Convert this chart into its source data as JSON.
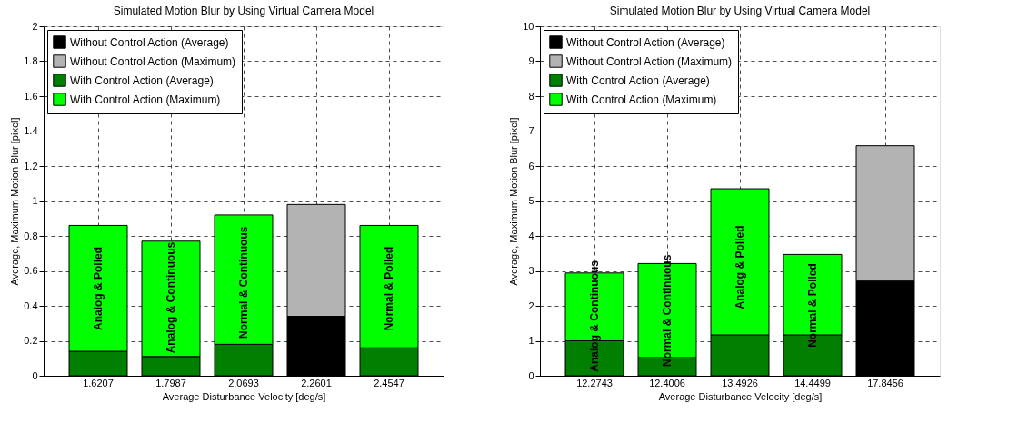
{
  "chart_data": [
    {
      "type": "bar",
      "title": "Simulated Motion Blur by Using Virtual Camera Model",
      "xlabel": "Average Disturbance Velocity [deg/s]",
      "ylabel": "Average, Maximum Motion Blur [pixel]",
      "categories": [
        "1.6207",
        "1.7987",
        "2.0693",
        "2.2601",
        "2.4547"
      ],
      "stacked": true,
      "series": [
        {
          "name": "Without Control Action (Average)",
          "color": "#000000",
          "values": [
            null,
            null,
            null,
            0.34,
            null
          ]
        },
        {
          "name": "Without Control Action (Maximum)",
          "color": "#b3b3b3",
          "values": [
            null,
            null,
            null,
            0.64,
            null
          ]
        },
        {
          "name": "With Control Action (Average)",
          "color": "#007f00",
          "values": [
            0.14,
            0.11,
            0.18,
            null,
            0.16
          ]
        },
        {
          "name": "With Control Action (Maximum)",
          "color": "#00ff00",
          "values": [
            0.72,
            0.66,
            0.74,
            null,
            0.7
          ]
        }
      ],
      "ylim": [
        0,
        2
      ],
      "yticks": [
        0,
        0.2,
        0.4,
        0.6,
        0.8,
        1,
        1.2,
        1.4,
        1.6,
        1.8,
        2
      ],
      "grid": true,
      "legend": "top left",
      "annotations": [
        "Analog & Polled",
        "Analog & Continuous",
        "Normal & Continuous",
        "Normal & Polled"
      ]
    },
    {
      "type": "bar",
      "title": "Simulated Motion Blur by Using Virtual Camera Model",
      "xlabel": "Average Disturbance Velocity [deg/s]",
      "ylabel": "Average, Maximum Motion Blur [pixel]",
      "categories": [
        "12.2743",
        "12.4006",
        "13.4926",
        "14.4499",
        "17.8456"
      ],
      "stacked": true,
      "series": [
        {
          "name": "Without Control Action (Average)",
          "color": "#000000",
          "values": [
            null,
            null,
            null,
            null,
            2.71
          ]
        },
        {
          "name": "Without Control Action (Maximum)",
          "color": "#b3b3b3",
          "values": [
            null,
            null,
            null,
            null,
            3.87
          ]
        },
        {
          "name": "With Control Action (Average)",
          "color": "#007f00",
          "values": [
            1.0,
            0.52,
            1.17,
            1.17,
            null
          ]
        },
        {
          "name": "With Control Action (Maximum)",
          "color": "#00ff00",
          "values": [
            1.94,
            2.69,
            4.18,
            2.3,
            null
          ]
        }
      ],
      "ylim": [
        0,
        10
      ],
      "yticks": [
        0,
        1,
        2,
        3,
        4,
        5,
        6,
        7,
        8,
        9,
        10
      ],
      "grid": true,
      "legend": "top left",
      "annotations": [
        "Analog & Continuous",
        "Normal & Continuous",
        "Analog & Polled",
        "Normal & Polled"
      ]
    }
  ]
}
